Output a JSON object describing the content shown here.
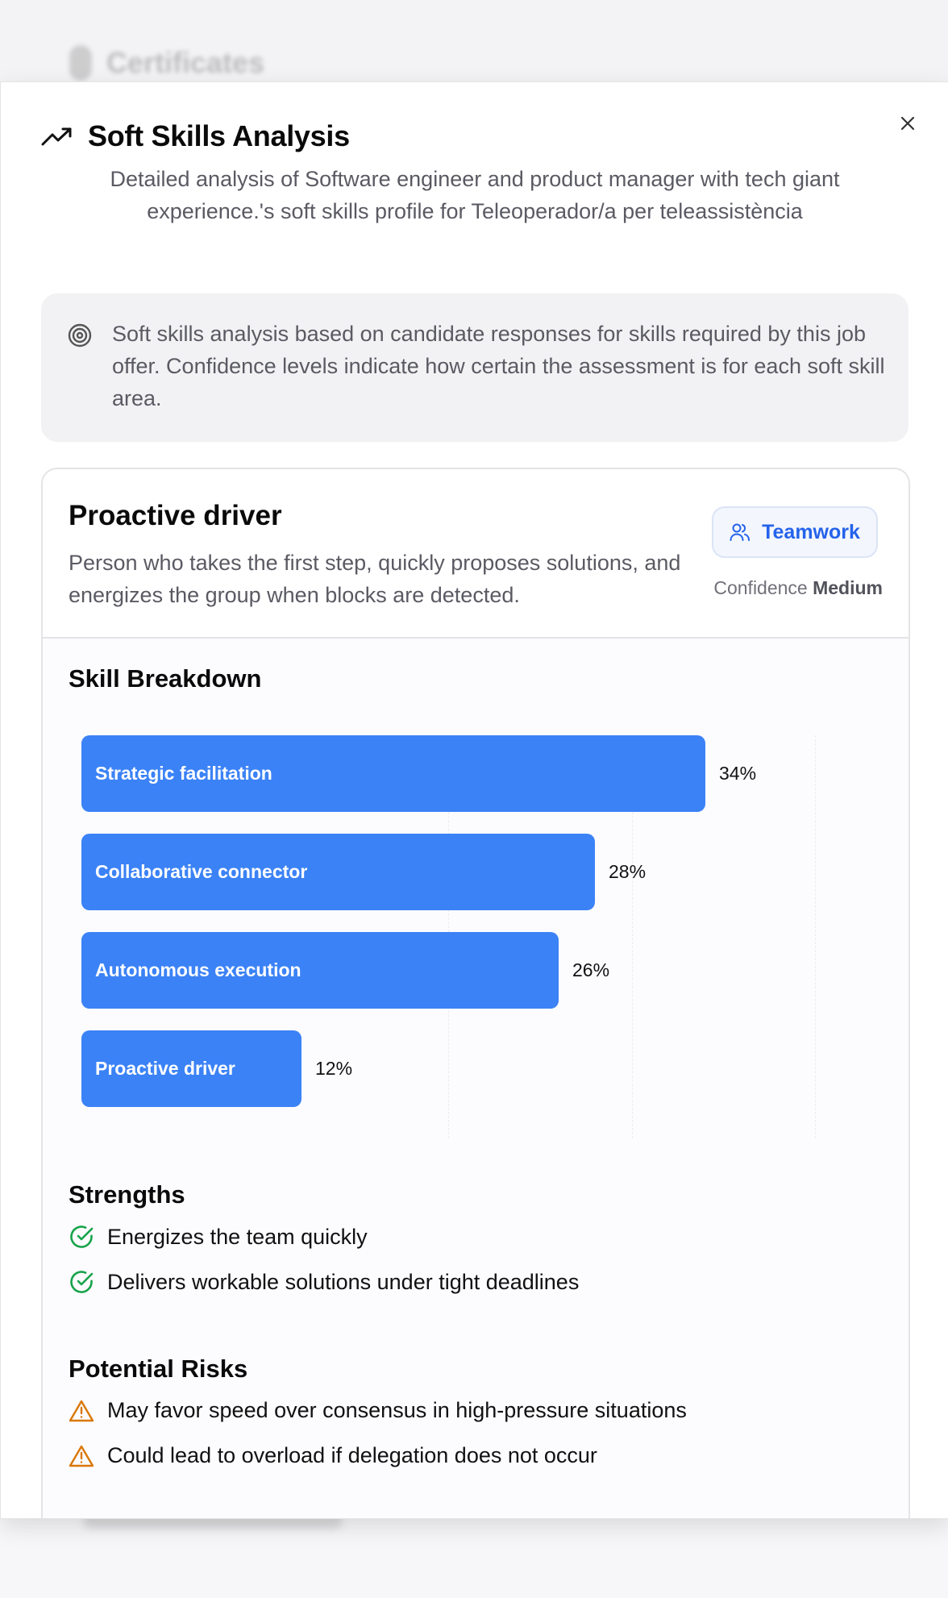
{
  "background": {
    "title": "Certificates"
  },
  "modal": {
    "title": "Soft Skills Analysis",
    "description": "Detailed analysis of Software engineer and product manager with tech giant experience.'s soft skills profile for Teleoperador/a per teleassistència",
    "info_text": "Soft skills analysis based on candidate responses for skills required by this job offer. Confidence levels indicate how certain the assessment is for each soft skill area.",
    "close_icon": "close-icon",
    "title_icon": "trending-up-icon",
    "info_icon": "target-icon"
  },
  "card": {
    "title": "Proactive driver",
    "description": "Person who takes the first step, quickly proposes solutions, and energizes the group when blocks are detected.",
    "badge_label": "Teamwork",
    "badge_icon": "users-icon",
    "confidence_label": "Confidence",
    "confidence_value": "Medium",
    "breakdown_title": "Skill Breakdown",
    "strengths_title": "Strengths",
    "strengths": [
      "Energizes the team quickly",
      "Delivers workable solutions under tight deadlines"
    ],
    "risks_title": "Potential Risks",
    "risks": [
      "May favor speed over consensus in high-pressure situations",
      "Could lead to overload if delegation does not occur"
    ]
  },
  "chart_data": {
    "type": "bar",
    "orientation": "horizontal",
    "categories": [
      "Strategic facilitation",
      "Collaborative connector",
      "Autonomous execution",
      "Proactive driver"
    ],
    "values": [
      34,
      28,
      26,
      12
    ],
    "value_labels": [
      "34%",
      "28%",
      "26%",
      "12%"
    ],
    "unit": "%",
    "xlim": [
      0,
      40
    ],
    "grid": true,
    "color": "#3b82f6"
  },
  "colors": {
    "accent": "#3b82f6",
    "badge_text": "#2563eb",
    "success": "#16a34a",
    "warning": "#d97706"
  }
}
